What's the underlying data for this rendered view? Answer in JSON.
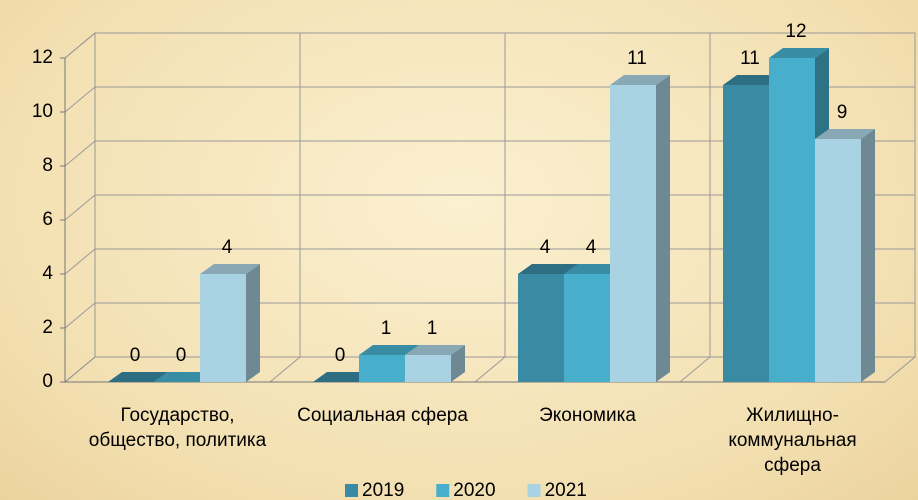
{
  "chart_data": {
    "type": "bar3d",
    "categories": [
      "Государство, общество, политика",
      "Социальная сфера",
      "Экономика",
      "Жилищно-коммунальная сфера"
    ],
    "series": [
      {
        "name": "2019",
        "color": "#3a8aa3",
        "values": [
          0,
          0,
          4,
          11
        ]
      },
      {
        "name": "2020",
        "color": "#47afcc",
        "values": [
          0,
          1,
          4,
          12
        ]
      },
      {
        "name": "2021",
        "color": "#a9d3e2",
        "values": [
          4,
          1,
          11,
          9
        ]
      }
    ],
    "ylim": [
      0,
      12
    ],
    "yticks": [
      0,
      2,
      4,
      6,
      8,
      10,
      12
    ],
    "grid": true,
    "legend": "bottom"
  }
}
